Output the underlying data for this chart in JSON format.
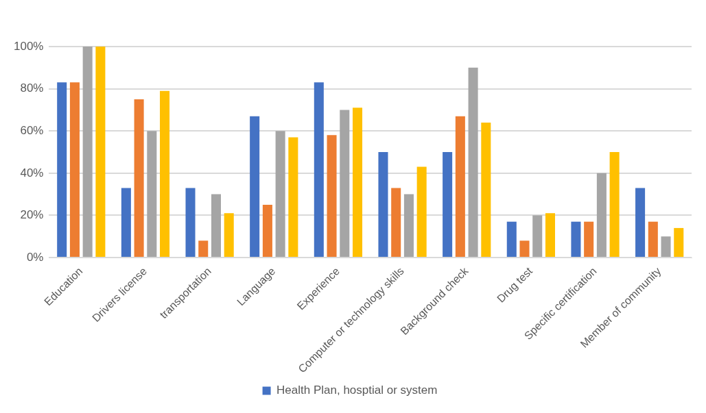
{
  "chart_data": {
    "type": "bar",
    "categories": [
      "Education",
      "Drivers license",
      "transportation",
      "Language",
      "Experience",
      "Computer or technology skills",
      "Background check",
      "Drug test",
      "Specific certification",
      "Member of community"
    ],
    "series": [
      {
        "name": "Health Plan, hosptial or system",
        "color": "#4472c4",
        "values": [
          83,
          33,
          33,
          67,
          83,
          50,
          50,
          17,
          17,
          33
        ]
      },
      {
        "color": "#ed7d31",
        "values": [
          83,
          75,
          8,
          25,
          58,
          33,
          67,
          8,
          17,
          17
        ]
      },
      {
        "color": "#a5a5a5",
        "values": [
          100,
          60,
          30,
          60,
          70,
          30,
          90,
          20,
          40,
          10
        ]
      },
      {
        "color": "#ffc000",
        "values": [
          100,
          79,
          21,
          57,
          71,
          43,
          64,
          21,
          50,
          14
        ]
      }
    ],
    "ylim": [
      0,
      100
    ],
    "yticks": [
      {
        "value": 0,
        "label": "0%"
      },
      {
        "value": 20,
        "label": "20%"
      },
      {
        "value": 40,
        "label": "40%"
      },
      {
        "value": 60,
        "label": "60%"
      },
      {
        "value": 80,
        "label": "80%"
      },
      {
        "value": 100,
        "label": "100%"
      }
    ],
    "grid": "y",
    "legend": "bottom"
  }
}
